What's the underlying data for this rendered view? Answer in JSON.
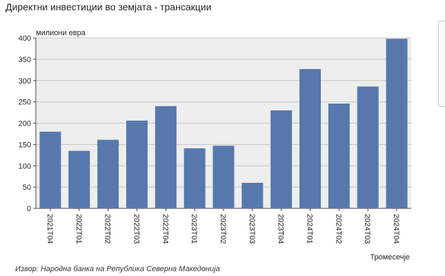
{
  "title": "Директни инвестиции во земјата - трансакции",
  "source": "Извор: Народна банка на Република Северна Македонија",
  "colors": {
    "bar": "#5878ad",
    "plot_bg": "#eeeeee",
    "grid": "#c4c4c4",
    "axis": "#444444"
  },
  "chart_data": {
    "type": "bar",
    "title": "Директни инвестиции во земјата - трансакции",
    "ylabel": "милиони евра",
    "xlabel": "Тромесечје",
    "ylim": [
      0,
      400
    ],
    "yticks": [
      0,
      50,
      100,
      150,
      200,
      250,
      300,
      350,
      400
    ],
    "grid": true,
    "categories": [
      "2021Т04",
      "2022Т01",
      "2022Т02",
      "2022Т03",
      "2022Т04",
      "2023Т01",
      "2023Т02",
      "2023Т03",
      "2023Т04",
      "2024Т01",
      "2024Т02",
      "2024Т03",
      "2024Т04"
    ],
    "values": [
      180,
      135,
      161,
      206,
      240,
      141,
      147,
      60,
      230,
      327,
      246,
      286,
      398
    ]
  }
}
